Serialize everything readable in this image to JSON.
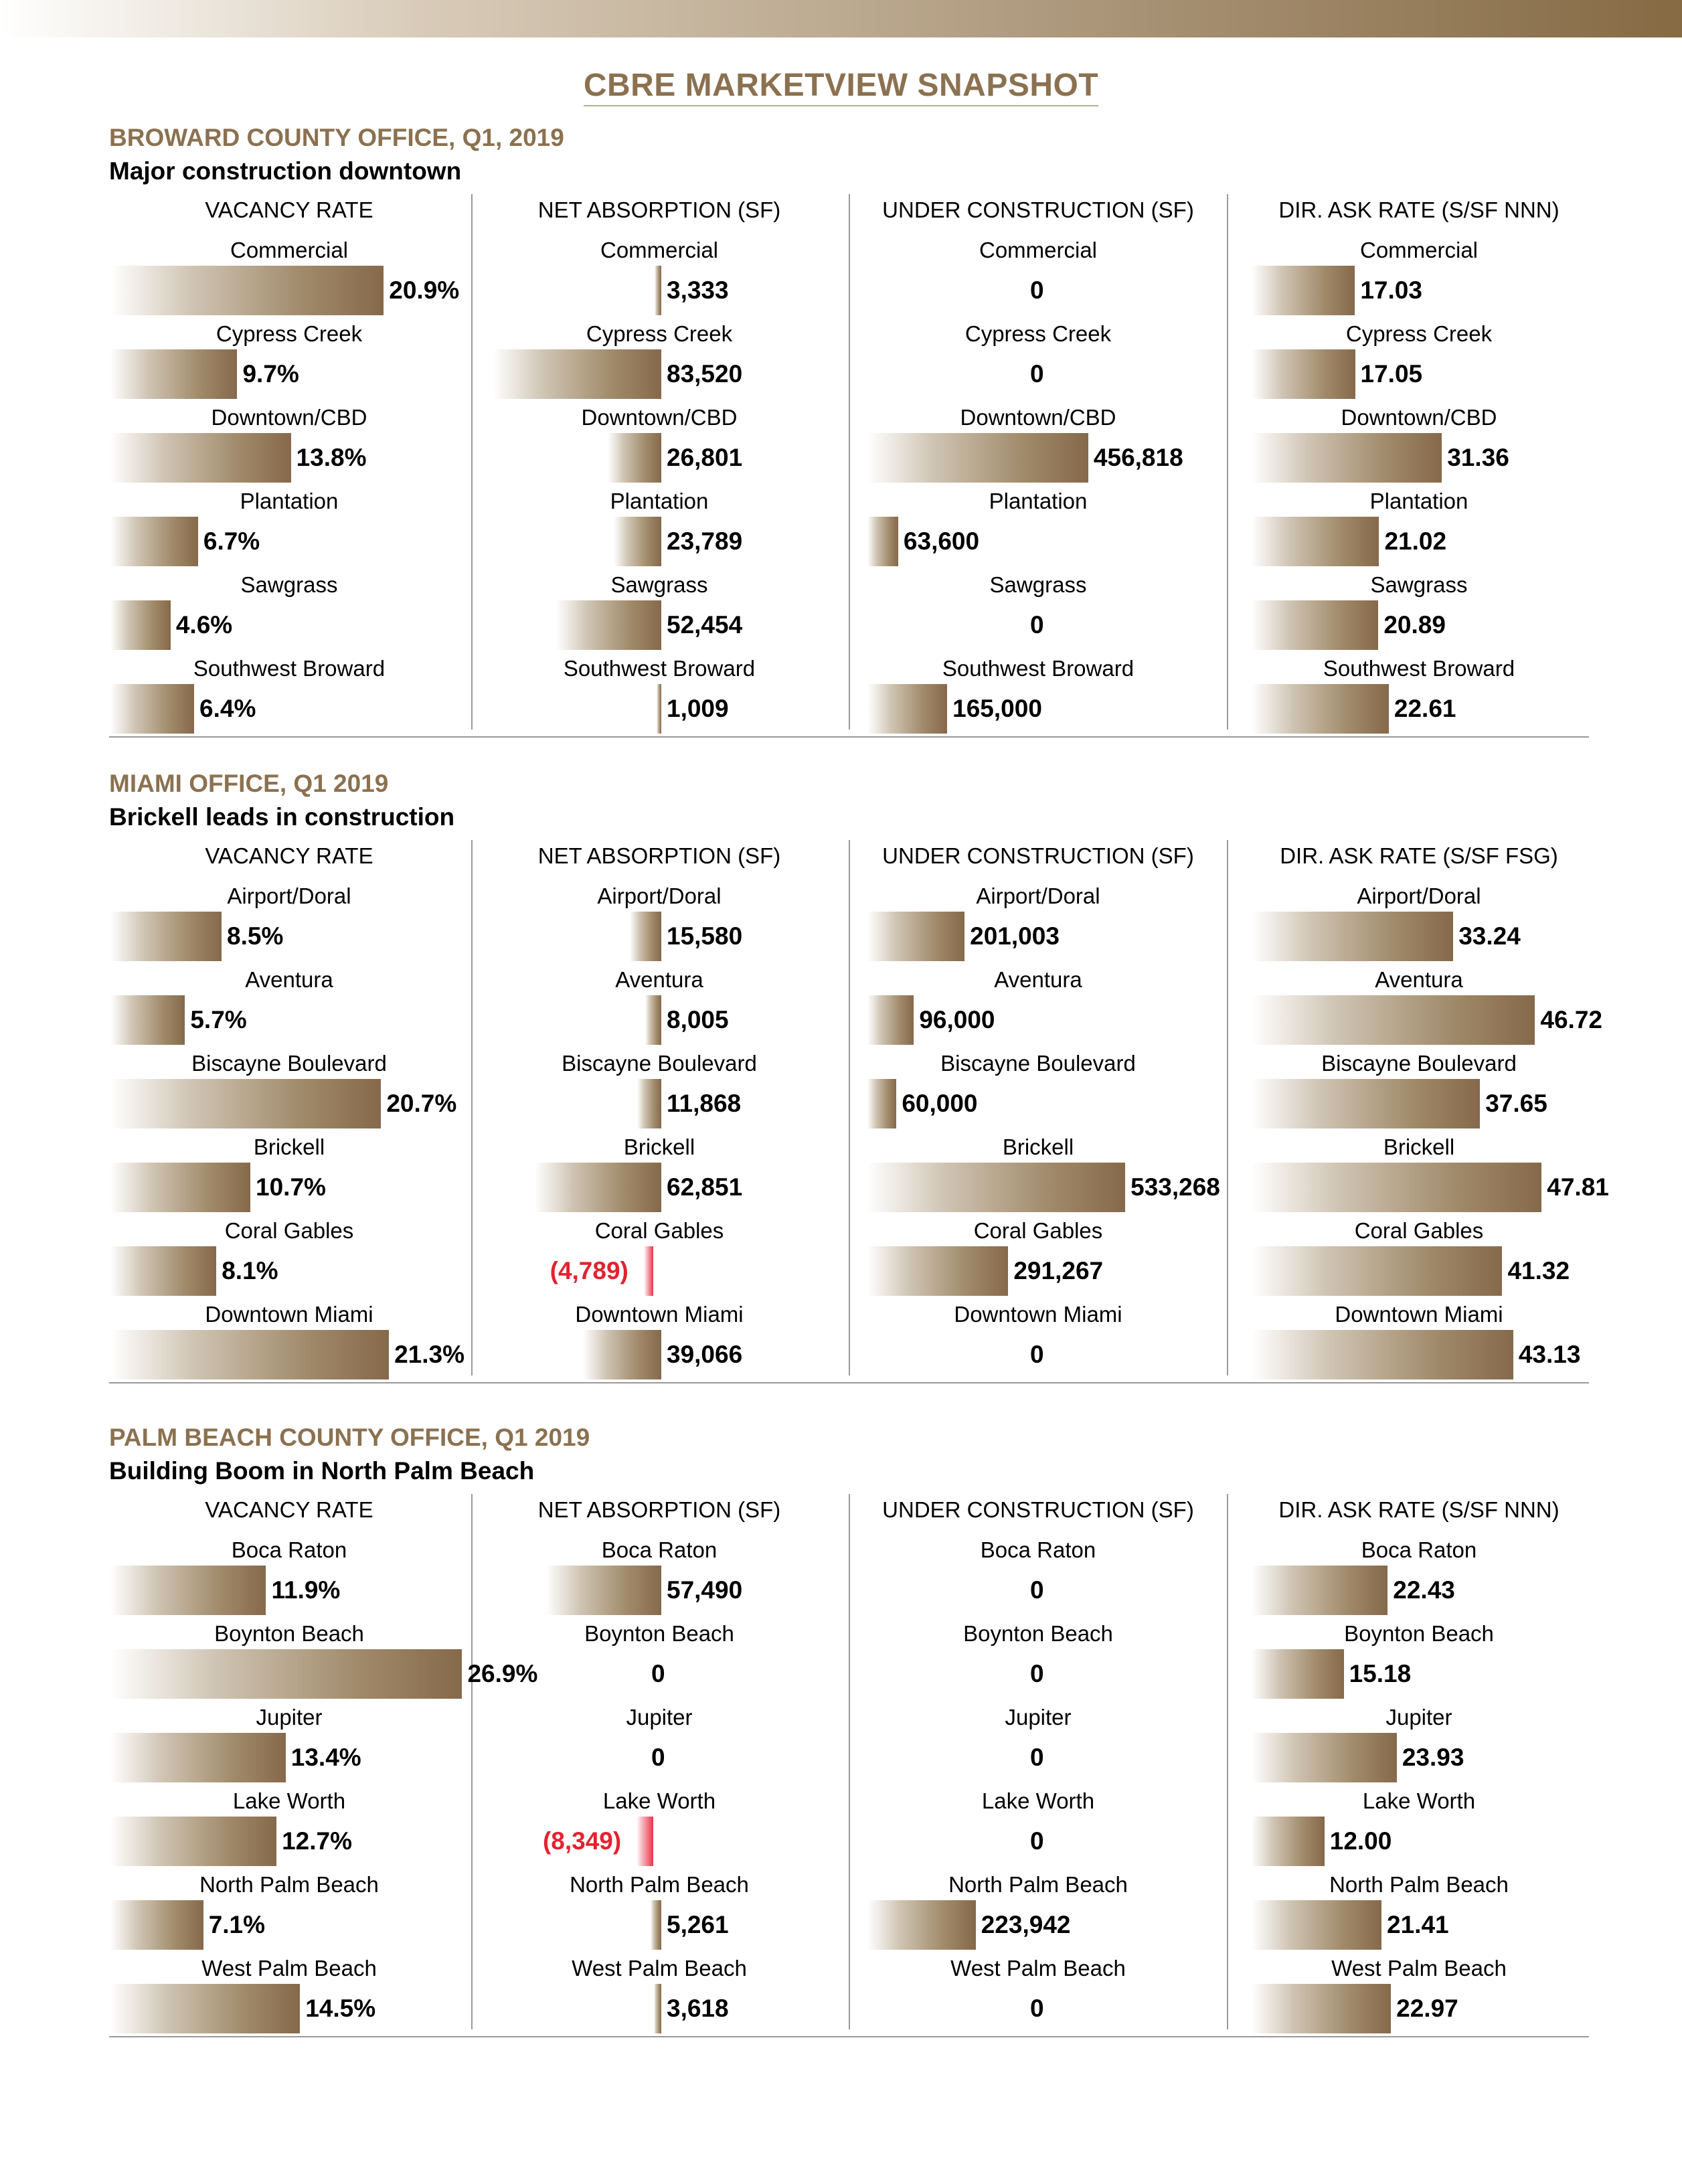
{
  "page_title": "CBRE MARKETVIEW SNAPSHOT",
  "colors": {
    "accent": "#8b7150",
    "negative": "#e42230",
    "bar_dark": "#85694a"
  },
  "chart_data": [
    {
      "type": "bar",
      "title": "BROWARD COUNTY OFFICE, Q1, 2019",
      "subtitle": "Major construction downtown",
      "panels": [
        {
          "title": "VACANCY RATE",
          "categories": [
            "Commercial",
            "Cypress Creek",
            "Downtown/CBD",
            "Plantation",
            "Sawgrass",
            "Southwest Broward"
          ],
          "values": [
            20.9,
            9.7,
            13.8,
            6.7,
            4.6,
            6.4
          ],
          "labels": [
            "20.9%",
            "9.7%",
            "13.8%",
            "6.7%",
            "4.6%",
            "6.4%"
          ]
        },
        {
          "title": "NET ABSORPTION (SF)",
          "categories": [
            "Commercial",
            "Cypress Creek",
            "Downtown/CBD",
            "Plantation",
            "Sawgrass",
            "Southwest Broward"
          ],
          "values": [
            3333,
            83520,
            26801,
            23789,
            52454,
            1009
          ],
          "labels": [
            "3,333",
            "83,520",
            "26,801",
            "23,789",
            "52,454",
            "1,009"
          ]
        },
        {
          "title": "UNDER CONSTRUCTION (SF)",
          "categories": [
            "Commercial",
            "Cypress Creek",
            "Downtown/CBD",
            "Plantation",
            "Sawgrass",
            "Southwest Broward"
          ],
          "values": [
            0,
            0,
            456818,
            63600,
            0,
            165000
          ],
          "labels": [
            "0",
            "0",
            "456,818",
            "63,600",
            "0",
            "165,000"
          ]
        },
        {
          "title": "DIR. ASK RATE (S/SF NNN)",
          "categories": [
            "Commercial",
            "Cypress Creek",
            "Downtown/CBD",
            "Plantation",
            "Sawgrass",
            "Southwest Broward"
          ],
          "values": [
            17.03,
            17.05,
            31.36,
            21.02,
            20.89,
            22.61
          ],
          "labels": [
            "17.03",
            "17.05",
            "31.36",
            "21.02",
            "20.89",
            "22.61"
          ]
        }
      ]
    },
    {
      "type": "bar",
      "title": "MIAMI OFFICE, Q1 2019",
      "subtitle": "Brickell leads in construction",
      "panels": [
        {
          "title": "VACANCY RATE",
          "categories": [
            "Airport/Doral",
            "Aventura",
            "Biscayne Boulevard",
            "Brickell",
            "Coral Gables",
            "Downtown Miami"
          ],
          "values": [
            8.5,
            5.7,
            20.7,
            10.7,
            8.1,
            21.3
          ],
          "labels": [
            "8.5%",
            "5.7%",
            "20.7%",
            "10.7%",
            "8.1%",
            "21.3%"
          ]
        },
        {
          "title": "NET ABSORPTION (SF)",
          "categories": [
            "Airport/Doral",
            "Aventura",
            "Biscayne Boulevard",
            "Brickell",
            "Coral Gables",
            "Downtown Miami"
          ],
          "values": [
            15580,
            8005,
            11868,
            62851,
            -4789,
            39066
          ],
          "labels": [
            "15,580",
            "8,005",
            "11,868",
            "62,851",
            "(4,789)",
            "39,066"
          ]
        },
        {
          "title": "UNDER CONSTRUCTION (SF)",
          "categories": [
            "Airport/Doral",
            "Aventura",
            "Biscayne Boulevard",
            "Brickell",
            "Coral Gables",
            "Downtown Miami"
          ],
          "values": [
            201003,
            96000,
            60000,
            533268,
            291267,
            0
          ],
          "labels": [
            "201,003",
            "96,000",
            "60,000",
            "533,268",
            "291,267",
            "0"
          ]
        },
        {
          "title": "DIR. ASK RATE (S/SF FSG)",
          "categories": [
            "Airport/Doral",
            "Aventura",
            "Biscayne Boulevard",
            "Brickell",
            "Coral Gables",
            "Downtown Miami"
          ],
          "values": [
            33.24,
            46.72,
            37.65,
            47.81,
            41.32,
            43.13
          ],
          "labels": [
            "33.24",
            "46.72",
            "37.65",
            "47.81",
            "41.32",
            "43.13"
          ]
        }
      ]
    },
    {
      "type": "bar",
      "title": "PALM BEACH COUNTY OFFICE, Q1 2019",
      "subtitle": "Building Boom in North Palm Beach",
      "panels": [
        {
          "title": "VACANCY RATE",
          "categories": [
            "Boca Raton",
            "Boynton Beach",
            "Jupiter",
            "Lake Worth",
            "North Palm Beach",
            "West Palm Beach"
          ],
          "values": [
            11.9,
            26.9,
            13.4,
            12.7,
            7.1,
            14.5
          ],
          "labels": [
            "11.9%",
            "26.9%",
            "13.4%",
            "12.7%",
            "7.1%",
            "14.5%"
          ]
        },
        {
          "title": "NET ABSORPTION (SF)",
          "categories": [
            "Boca Raton",
            "Boynton Beach",
            "Jupiter",
            "Lake Worth",
            "North Palm Beach",
            "West Palm Beach"
          ],
          "values": [
            57490,
            0,
            0,
            -8349,
            5261,
            3618
          ],
          "labels": [
            "57,490",
            "0",
            "0",
            "(8,349)",
            "5,261",
            "3,618"
          ]
        },
        {
          "title": "UNDER CONSTRUCTION (SF)",
          "categories": [
            "Boca Raton",
            "Boynton Beach",
            "Jupiter",
            "Lake Worth",
            "North Palm Beach",
            "West Palm Beach"
          ],
          "values": [
            0,
            0,
            0,
            0,
            223942,
            0
          ],
          "labels": [
            "0",
            "0",
            "0",
            "0",
            "223,942",
            "0"
          ]
        },
        {
          "title": "DIR. ASK RATE (S/SF NNN)",
          "categories": [
            "Boca Raton",
            "Boynton Beach",
            "Jupiter",
            "Lake Worth",
            "North Palm Beach",
            "West Palm Beach"
          ],
          "values": [
            22.43,
            15.18,
            23.93,
            12.0,
            21.41,
            22.97
          ],
          "labels": [
            "22.43",
            "15.18",
            "23.93",
            "12.00",
            "21.41",
            "22.97"
          ]
        }
      ]
    }
  ]
}
